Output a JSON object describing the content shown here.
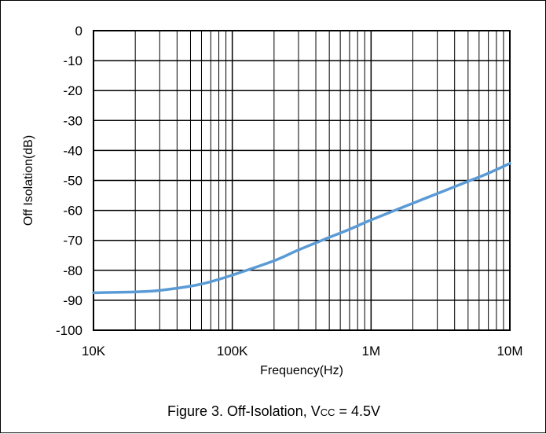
{
  "caption": {
    "prefix": "Figure 3. Off-Isolation, V",
    "subscript": "CC",
    "suffix": " = 4.5V"
  },
  "chart_data": {
    "type": "line",
    "xlabel": "Frequency(Hz)",
    "ylabel": "Off Isolation(dB)",
    "x_scale": "log",
    "xlim": [
      10000,
      10000000
    ],
    "ylim": [
      -100,
      0
    ],
    "x_ticks": [
      10000,
      100000,
      1000000,
      10000000
    ],
    "x_tick_labels": [
      "10K",
      "100K",
      "1M",
      "10M"
    ],
    "y_ticks": [
      0,
      -10,
      -20,
      -30,
      -40,
      -50,
      -60,
      -70,
      -80,
      -90,
      -100
    ],
    "y_tick_labels": [
      "0",
      "-10",
      "-20",
      "-30",
      "-40",
      "-50",
      "-60",
      "-70",
      "-80",
      "-90",
      "-100"
    ],
    "grid": true,
    "series": [
      {
        "color": "#5b9bd5",
        "x": [
          10000,
          20000,
          30000,
          50000,
          70000,
          100000,
          200000,
          300000,
          500000,
          700000,
          1000000,
          2000000,
          3000000,
          5000000,
          7000000,
          10000000
        ],
        "y": [
          -87.5,
          -87.2,
          -86.7,
          -85.3,
          -83.8,
          -81.6,
          -76.8,
          -73.2,
          -69.0,
          -66.3,
          -63.2,
          -57.6,
          -54.4,
          -50.3,
          -47.6,
          -44.3
        ]
      }
    ]
  }
}
